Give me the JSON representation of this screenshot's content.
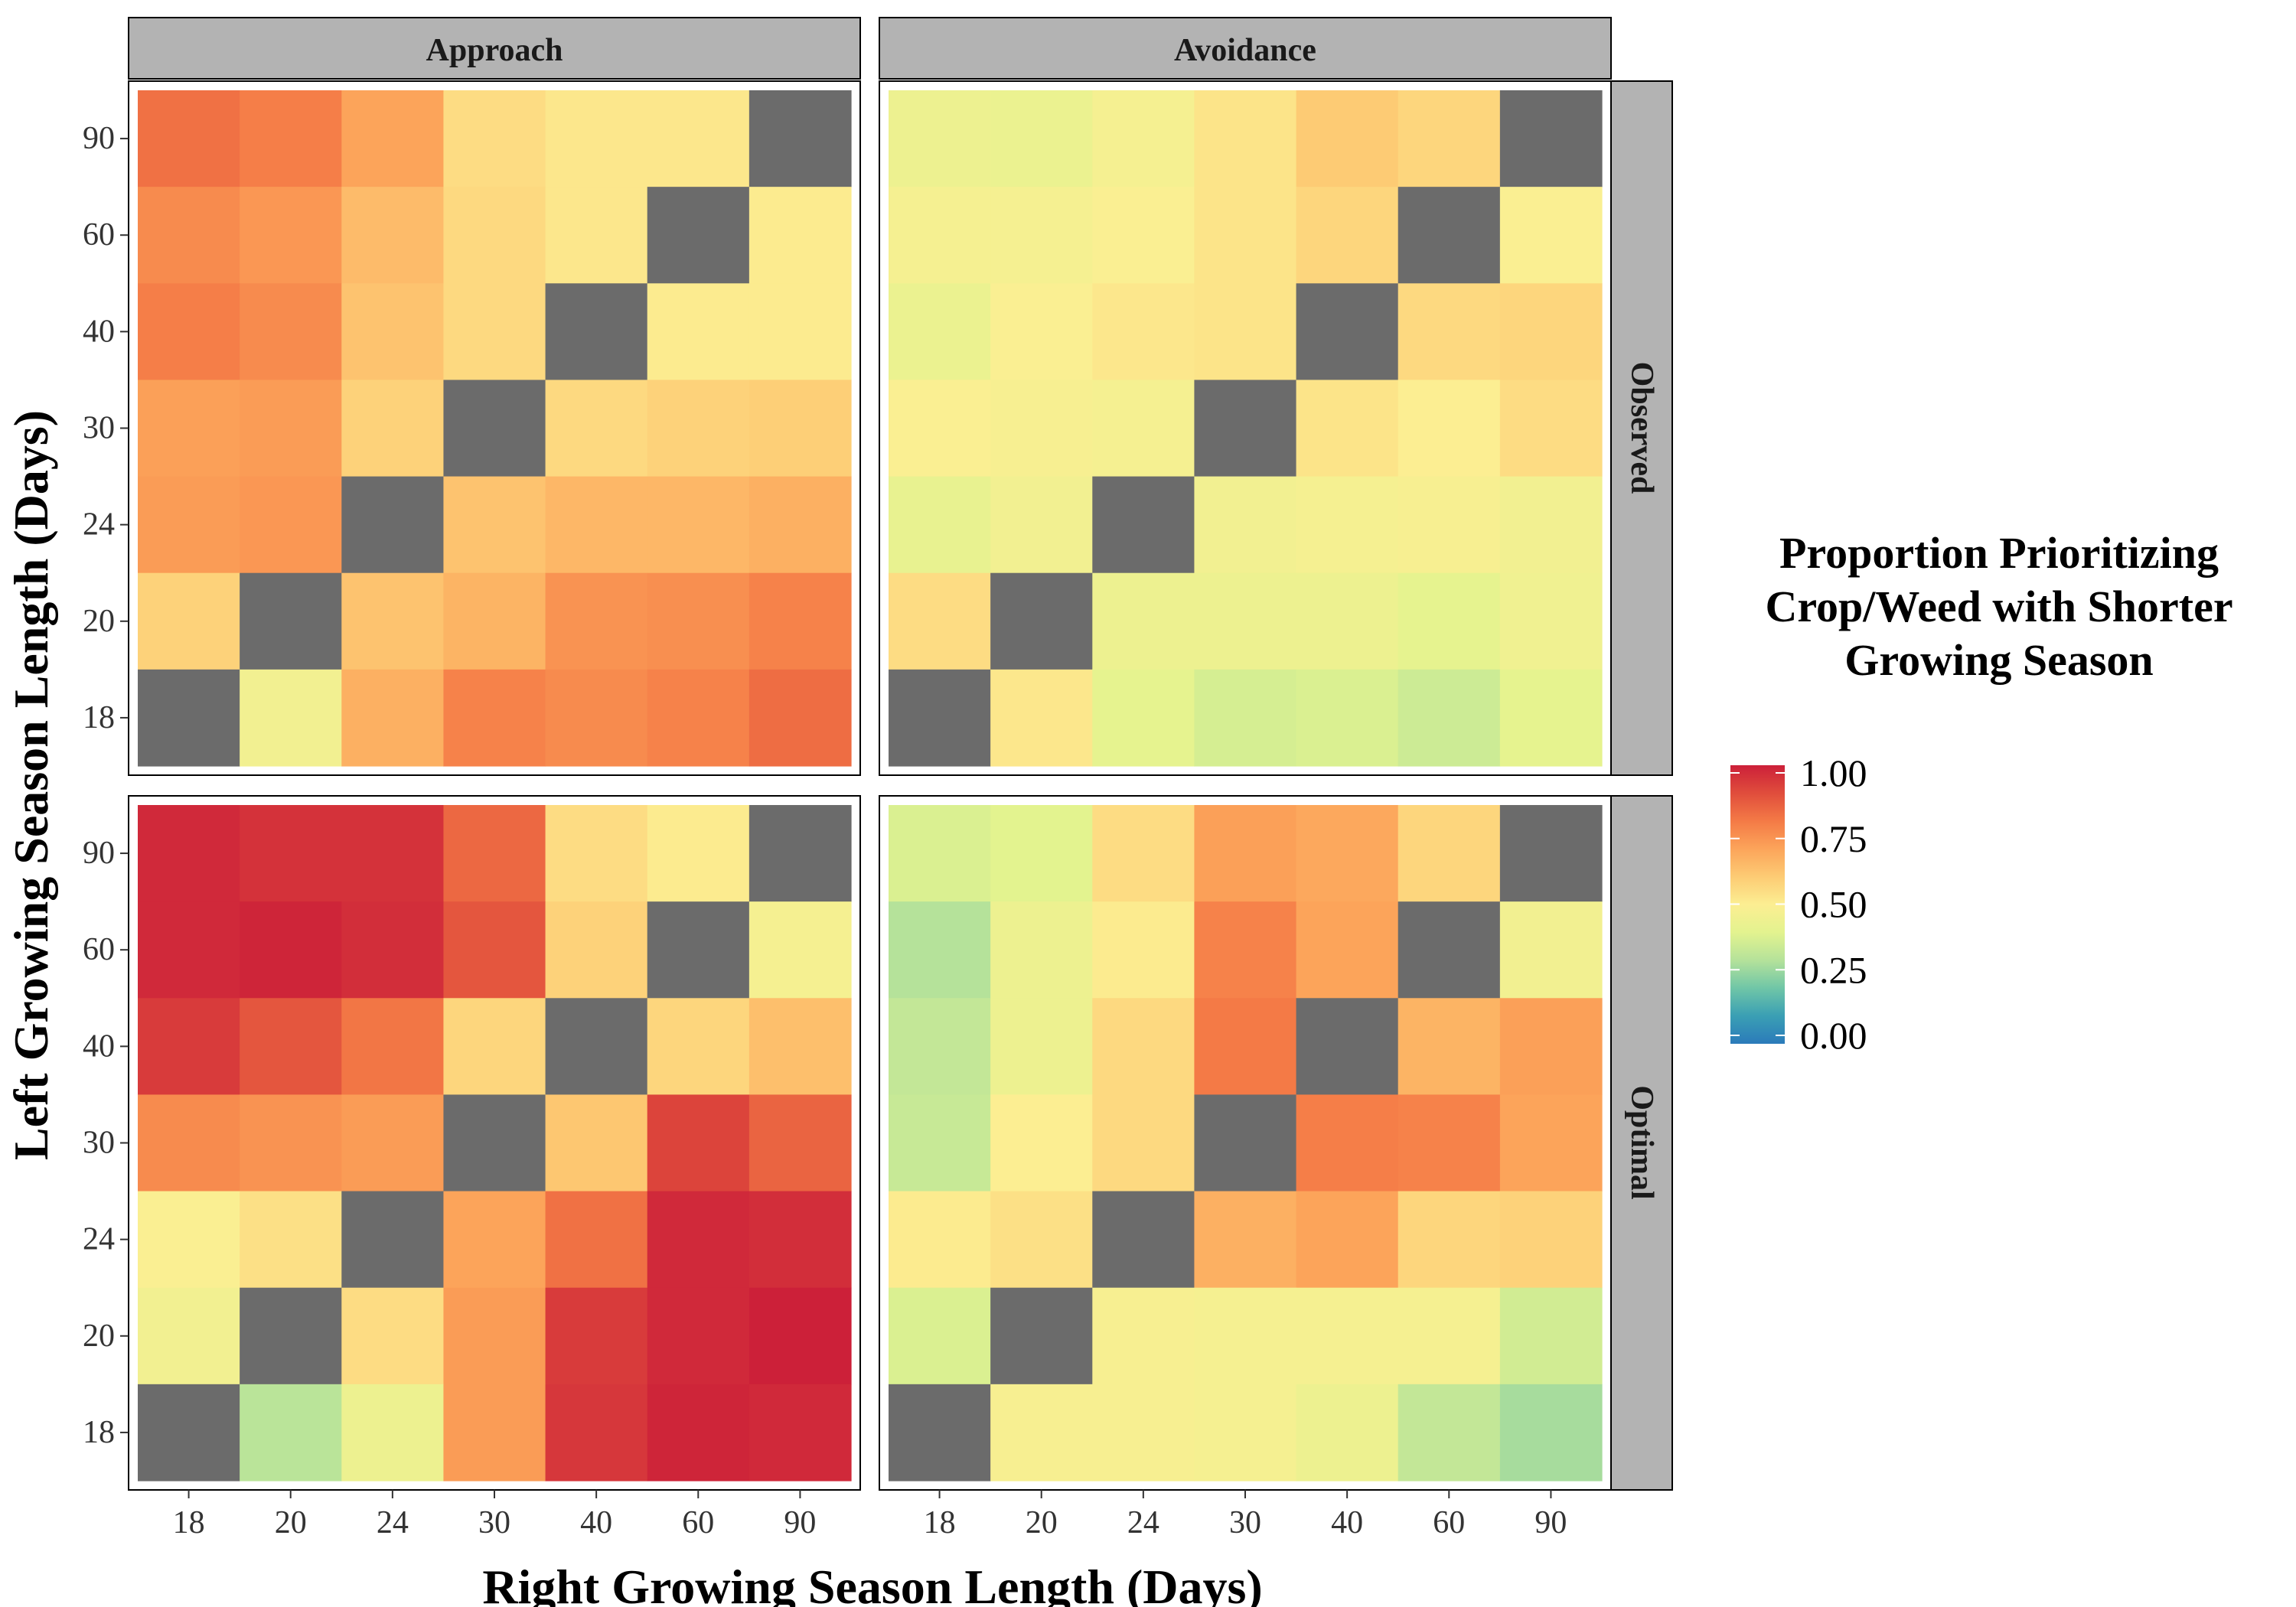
{
  "chart_data": {
    "type": "heatmap",
    "xlabel": "Right Growing Season Length (Days)",
    "ylabel": "Left Growing Season Length (Days)",
    "x_categories": [
      "18",
      "20",
      "24",
      "30",
      "40",
      "60",
      "90"
    ],
    "y_categories": [
      "18",
      "20",
      "24",
      "30",
      "40",
      "60",
      "90"
    ],
    "facet_columns": [
      "Approach",
      "Avoidance"
    ],
    "facet_rows": [
      "Observed",
      "Optimal"
    ],
    "legend": {
      "title_lines": [
        "Proportion Prioritizing",
        "Crop/Weed with Shorter",
        "Growing Season"
      ],
      "labels": [
        "1.00",
        "0.75",
        "0.50",
        "0.25",
        "0.00"
      ],
      "ticks": [
        1.0,
        0.75,
        0.5,
        0.25,
        0.0
      ],
      "placement": "right"
    },
    "color_scale": {
      "range": [
        0,
        1
      ],
      "stops": [
        {
          "v": 0.0,
          "c": "#2b7bba"
        },
        {
          "v": 0.1,
          "c": "#3a9fb4"
        },
        {
          "v": 0.2,
          "c": "#70c6a7"
        },
        {
          "v": 0.3,
          "c": "#b5e29a"
        },
        {
          "v": 0.4,
          "c": "#e3f38f"
        },
        {
          "v": 0.5,
          "c": "#fcee92"
        },
        {
          "v": 0.6,
          "c": "#fdcb74"
        },
        {
          "v": 0.7,
          "c": "#fca45a"
        },
        {
          "v": 0.8,
          "c": "#f47a46"
        },
        {
          "v": 0.9,
          "c": "#e04d3c"
        },
        {
          "v": 1.0,
          "c": "#cc2039"
        }
      ],
      "na_color": "#6b6b6b"
    },
    "panels": [
      {
        "column": "Approach",
        "row": "Observed",
        "values": [
          [
            0.82,
            0.79,
            0.7,
            0.55,
            0.52,
            0.52,
            null
          ],
          [
            0.76,
            0.73,
            0.64,
            0.56,
            0.52,
            null,
            0.51
          ],
          [
            0.79,
            0.76,
            0.62,
            0.56,
            null,
            0.51,
            0.51
          ],
          [
            0.71,
            0.72,
            0.58,
            null,
            0.56,
            0.58,
            0.59
          ],
          [
            0.72,
            0.73,
            null,
            0.62,
            0.65,
            0.65,
            0.67
          ],
          [
            0.58,
            null,
            0.62,
            0.66,
            0.74,
            0.75,
            0.78
          ],
          [
            null,
            0.46,
            0.67,
            0.78,
            0.76,
            0.78,
            0.83
          ]
        ]
      },
      {
        "column": "Avoidance",
        "row": "Observed",
        "values": [
          [
            0.44,
            0.43,
            0.47,
            0.53,
            0.6,
            0.57,
            null
          ],
          [
            0.47,
            0.47,
            0.49,
            0.53,
            0.57,
            null,
            0.49
          ],
          [
            0.43,
            0.49,
            0.52,
            0.53,
            null,
            0.56,
            0.57
          ],
          [
            0.49,
            0.48,
            0.47,
            null,
            0.53,
            0.5,
            0.55
          ],
          [
            0.42,
            0.46,
            null,
            0.46,
            0.47,
            0.48,
            0.46
          ],
          [
            0.55,
            null,
            0.44,
            0.44,
            0.44,
            0.41,
            0.45
          ],
          [
            null,
            0.52,
            0.41,
            0.37,
            0.38,
            0.35,
            0.41
          ]
        ]
      },
      {
        "column": "Approach",
        "row": "Optimal",
        "values": [
          [
            0.98,
            0.96,
            0.96,
            0.84,
            0.55,
            0.51,
            null
          ],
          [
            0.98,
            0.99,
            0.97,
            0.88,
            0.58,
            null,
            0.47
          ],
          [
            0.94,
            0.88,
            0.81,
            0.57,
            null,
            0.57,
            0.63
          ],
          [
            0.76,
            0.74,
            0.72,
            null,
            0.61,
            0.92,
            0.85
          ],
          [
            0.49,
            0.54,
            null,
            0.7,
            0.82,
            0.98,
            0.97
          ],
          [
            0.46,
            null,
            0.55,
            0.72,
            0.94,
            0.98,
            1.0
          ],
          [
            null,
            0.31,
            0.44,
            0.72,
            0.95,
            0.99,
            0.98
          ]
        ]
      },
      {
        "column": "Avoidance",
        "row": "Optimal",
        "values": [
          [
            0.38,
            0.4,
            0.55,
            0.71,
            0.69,
            0.57,
            null
          ],
          [
            0.3,
            0.44,
            0.51,
            0.78,
            0.7,
            null,
            0.46
          ],
          [
            0.33,
            0.44,
            0.56,
            0.8,
            null,
            0.66,
            0.71
          ],
          [
            0.34,
            0.5,
            0.56,
            null,
            0.79,
            0.78,
            0.7
          ],
          [
            0.51,
            0.54,
            null,
            0.67,
            0.7,
            0.57,
            0.58
          ],
          [
            0.38,
            null,
            0.48,
            0.47,
            0.47,
            0.47,
            0.36
          ],
          [
            null,
            0.48,
            0.48,
            0.47,
            0.44,
            0.33,
            0.28
          ]
        ]
      }
    ]
  }
}
